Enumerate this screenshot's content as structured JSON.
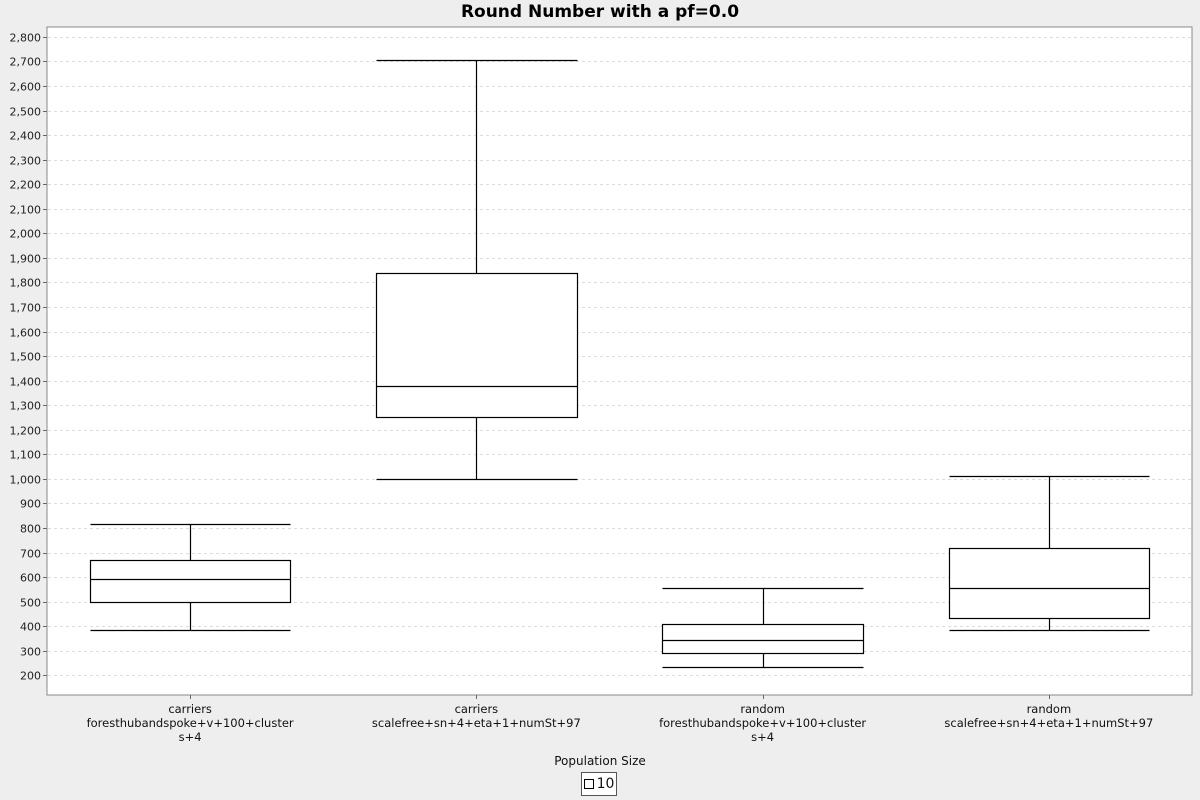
{
  "chart_data": {
    "type": "box",
    "title": "Round Number with a pf=0.0",
    "xlabel": "",
    "ylabel": "",
    "ylim": [
      120,
      2840
    ],
    "yticks": [
      "200",
      "300",
      "400",
      "500",
      "600",
      "700",
      "800",
      "900",
      "1,000",
      "1,100",
      "1,200",
      "1,300",
      "1,400",
      "1,500",
      "1,600",
      "1,700",
      "1,800",
      "1,900",
      "2,000",
      "2,100",
      "2,200",
      "2,300",
      "2,400",
      "2,500",
      "2,600",
      "2,700",
      "2,800"
    ],
    "ytick_values": [
      200,
      300,
      400,
      500,
      600,
      700,
      800,
      900,
      1000,
      1100,
      1200,
      1300,
      1400,
      1500,
      1600,
      1700,
      1800,
      1900,
      2000,
      2100,
      2200,
      2300,
      2400,
      2500,
      2600,
      2700,
      2800
    ],
    "grid": true,
    "legend_title": "Population Size",
    "legend_position": "bottom",
    "categories": [
      {
        "lines": [
          "carriers",
          "foresthubandspoke+v+100+cluster",
          "s+4"
        ]
      },
      {
        "lines": [
          "carriers",
          "scalefree+sn+4+eta+1+numSt+97"
        ]
      },
      {
        "lines": [
          "random",
          "foresthubandspoke+v+100+cluster",
          "s+4"
        ]
      },
      {
        "lines": [
          "random",
          "scalefree+sn+4+eta+1+numSt+97"
        ]
      }
    ],
    "series": [
      {
        "name": "10",
        "boxes": [
          {
            "min": 385,
            "q1": 500,
            "median": 593,
            "q3": 670,
            "max": 815
          },
          {
            "min": 1000,
            "q1": 1250,
            "median": 1380,
            "q3": 1840,
            "max": 2705
          },
          {
            "min": 235,
            "q1": 290,
            "median": 345,
            "q3": 408,
            "max": 557
          },
          {
            "min": 383,
            "q1": 432,
            "median": 557,
            "q3": 720,
            "max": 1012
          }
        ]
      }
    ]
  }
}
